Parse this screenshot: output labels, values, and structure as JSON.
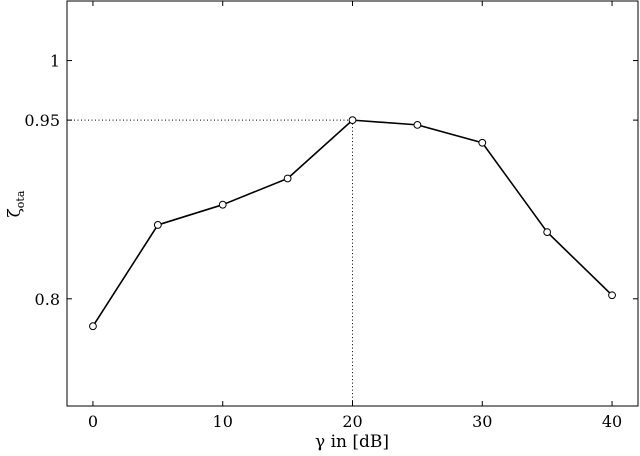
{
  "chart_data": {
    "type": "line",
    "title": "",
    "xlabel": "γ in [dB]",
    "ylabel": {
      "symbol": "ζ",
      "subscript": "ota"
    },
    "xlim": [
      -2,
      42
    ],
    "ylim": [
      0.71,
      1.05
    ],
    "xticks": [
      0,
      10,
      20,
      30,
      40
    ],
    "xtick_labels": [
      "0",
      "10",
      "20",
      "30",
      "40"
    ],
    "yticks": [
      0.8,
      0.95,
      1
    ],
    "ytick_labels": [
      "0.8",
      "0.95",
      "1"
    ],
    "grid": false,
    "series": [
      {
        "x": [
          0,
          5,
          10,
          15,
          20,
          25,
          30,
          35,
          40
        ],
        "y": [
          0.777,
          0.862,
          0.879,
          0.901,
          0.95,
          0.946,
          0.931,
          0.856,
          0.803
        ],
        "marker": "circle-open",
        "color": "#000000"
      }
    ],
    "annotations": [
      {
        "type": "dotted-guide",
        "x": 20,
        "y": 0.95
      }
    ]
  }
}
